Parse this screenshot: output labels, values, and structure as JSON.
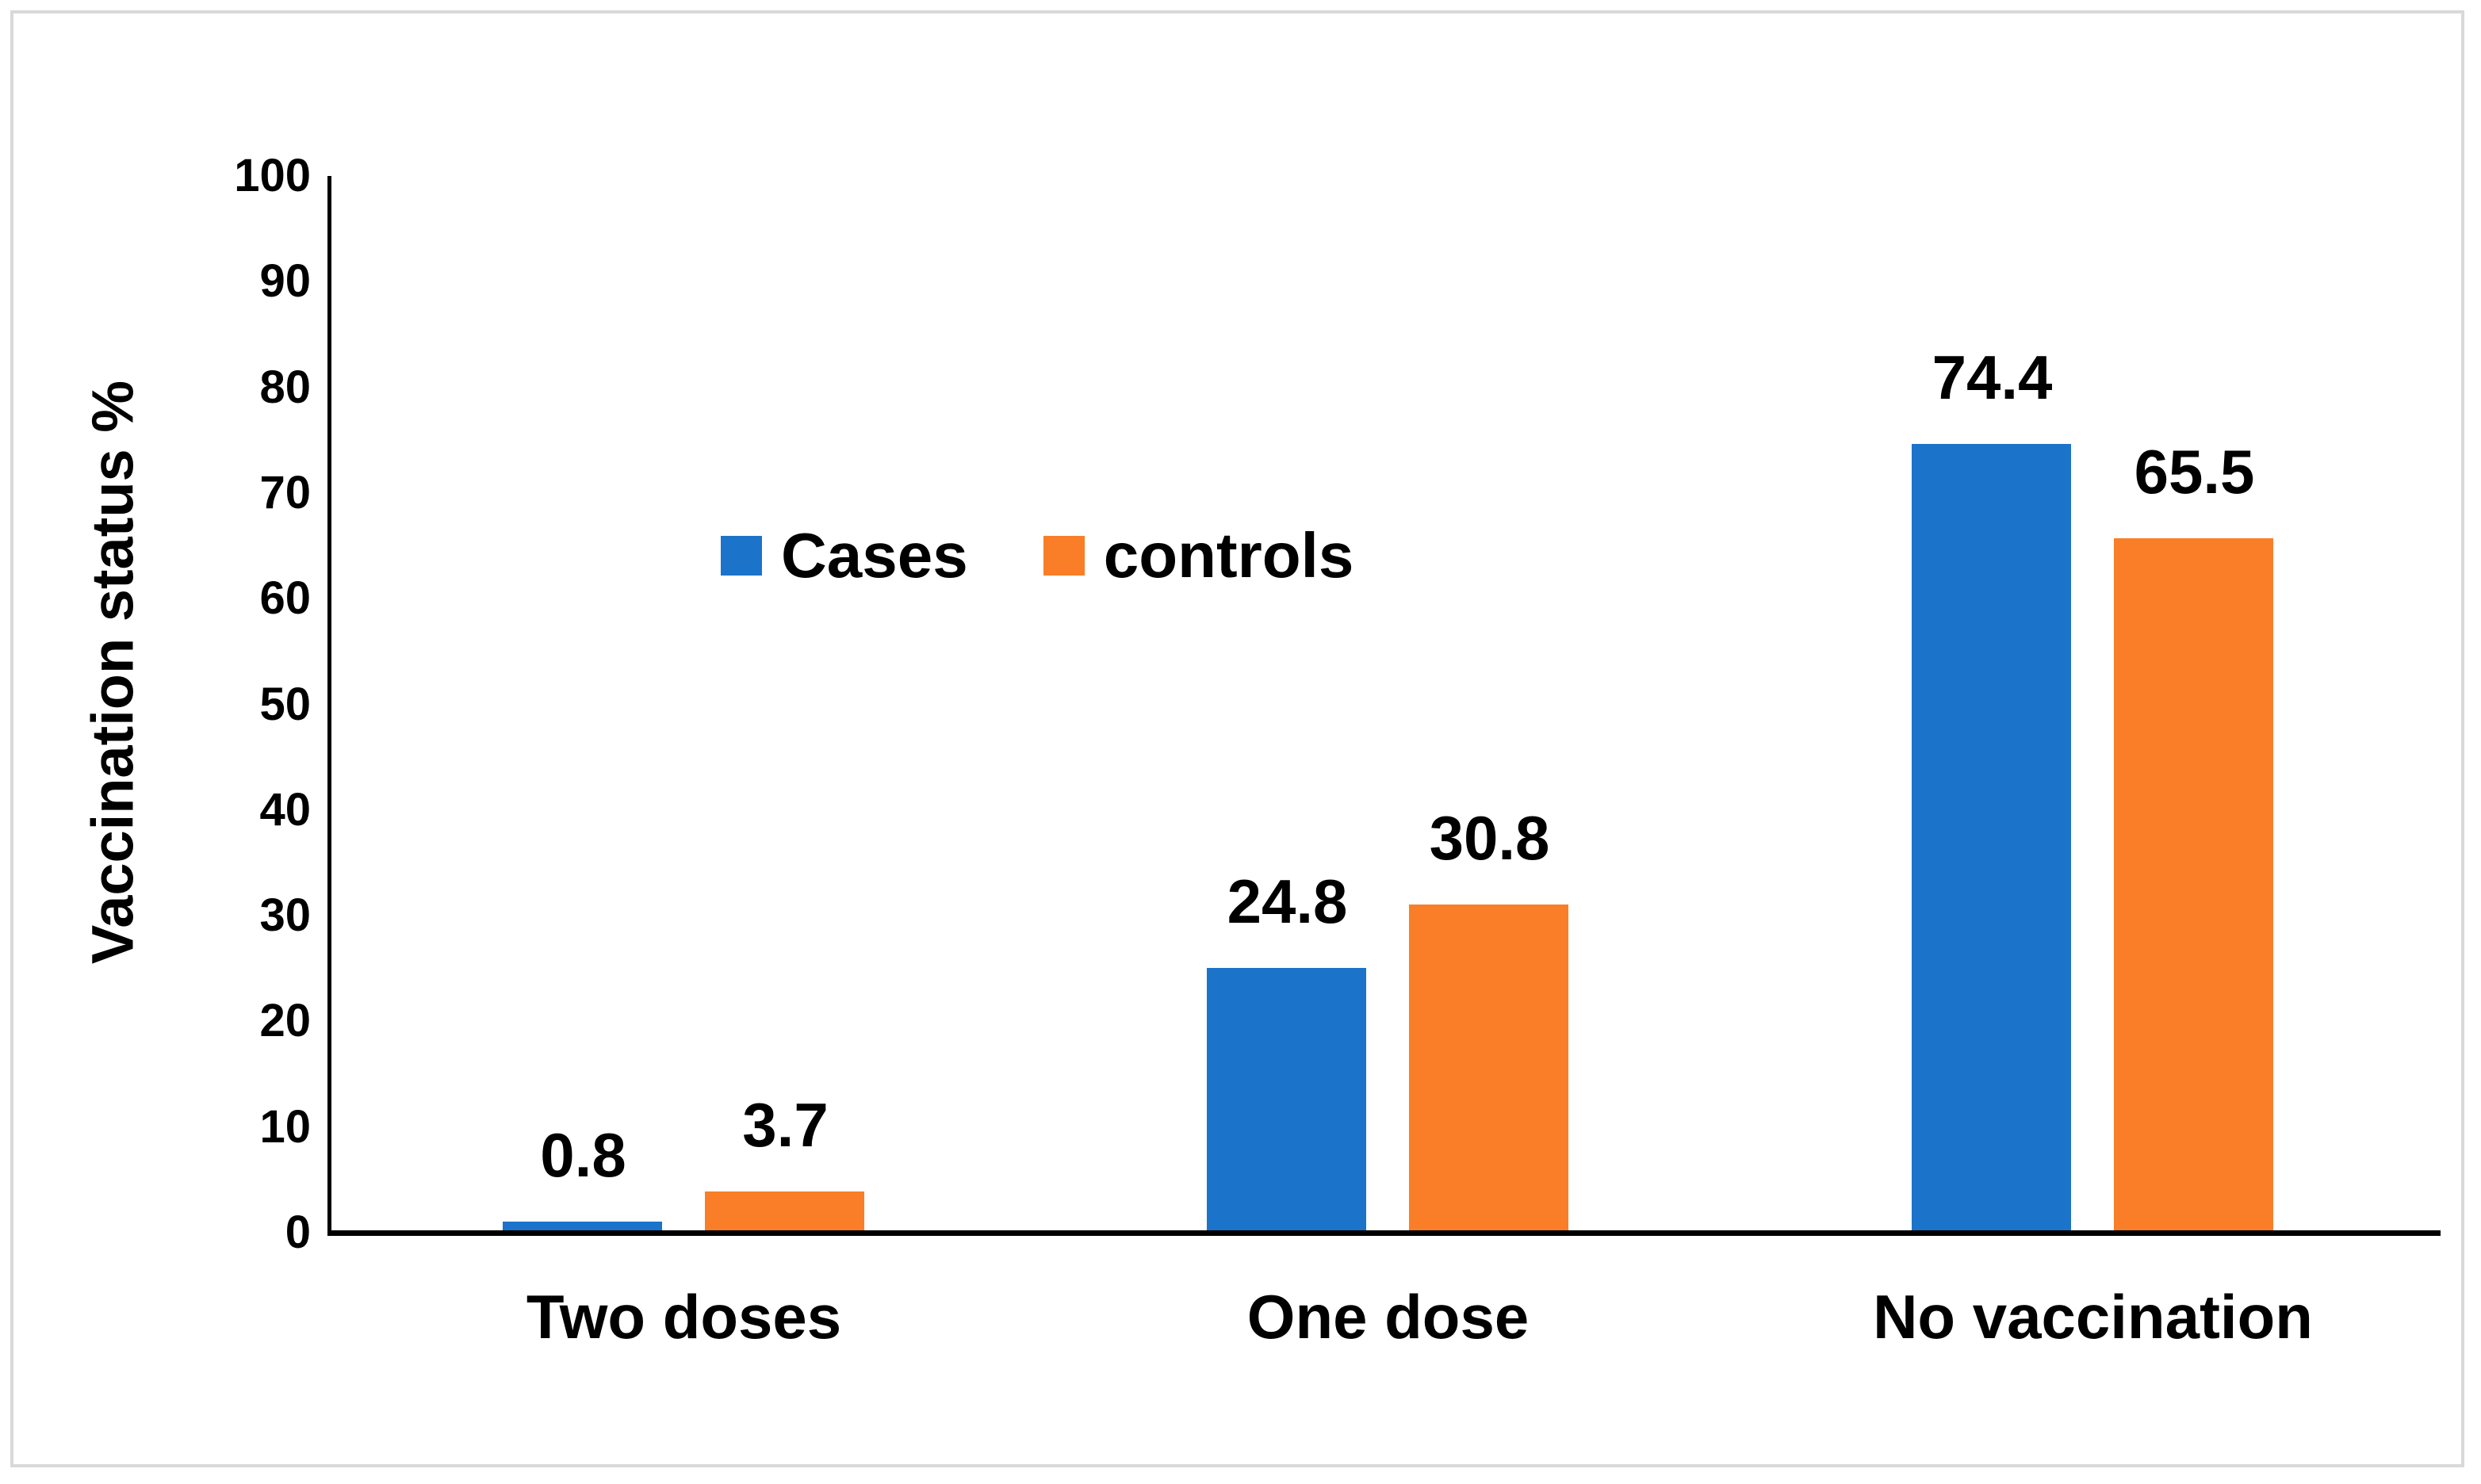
{
  "chart_data": {
    "type": "bar",
    "ylabel": "Vaccination status %",
    "categories": [
      "Two doses",
      "One dose",
      "No vaccination"
    ],
    "series": [
      {
        "name": "Cases",
        "color": "#1b74c9",
        "values": [
          0.8,
          24.8,
          74.4
        ]
      },
      {
        "name": "controls",
        "color": "#f97e27",
        "values": [
          3.7,
          30.8,
          65.5
        ]
      }
    ],
    "value_labels": [
      "0.8",
      "3.7",
      "24.8",
      "30.8",
      "74.4",
      "65.5"
    ],
    "ylim": [
      0,
      100
    ],
    "yticks": [
      0,
      10,
      20,
      30,
      40,
      50,
      60,
      70,
      80,
      90,
      100
    ],
    "grid": false,
    "legend_position": "inside-upper-left",
    "axis_color": "#000000",
    "frame_color": "#d9d9d9",
    "background": "#ffffff"
  }
}
